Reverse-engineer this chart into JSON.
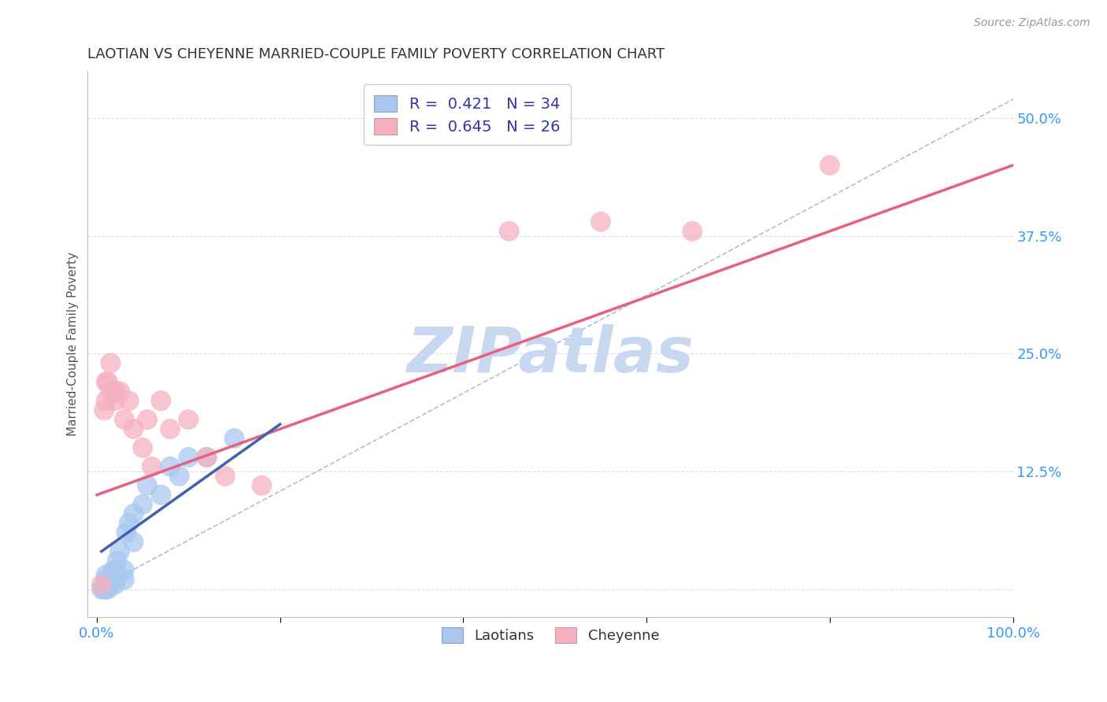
{
  "title": "LAOTIAN VS CHEYENNE MARRIED-COUPLE FAMILY POVERTY CORRELATION CHART",
  "source": "Source: ZipAtlas.com",
  "ylabel": "Married-Couple Family Poverty",
  "xlim": [
    -0.01,
    1.0
  ],
  "ylim": [
    -0.03,
    0.55
  ],
  "xticks": [
    0.0,
    0.2,
    0.4,
    0.6,
    0.8,
    1.0
  ],
  "xticklabels_show": [
    "0.0%",
    "",
    "",
    "",
    "",
    "100.0%"
  ],
  "yticks": [
    0.0,
    0.125,
    0.25,
    0.375,
    0.5
  ],
  "yticklabels": [
    "",
    "12.5%",
    "25.0%",
    "37.5%",
    "50.0%"
  ],
  "laotian_R": 0.421,
  "laotian_N": 34,
  "cheyenne_R": 0.645,
  "cheyenne_N": 26,
  "laotian_color": "#A8C8F0",
  "cheyenne_color": "#F5B0C0",
  "laotian_line_color": "#4060B0",
  "cheyenne_line_color": "#E86080",
  "ref_line_color": "#99AADD",
  "grid_color": "#DDDDEE",
  "title_color": "#333333",
  "axis_label_color": "#555555",
  "tick_color": "#3399FF",
  "watermark": "ZIPatlas",
  "watermark_color": "#C8D8F0",
  "laotian_x": [
    0.005,
    0.007,
    0.008,
    0.009,
    0.01,
    0.01,
    0.01,
    0.01,
    0.01,
    0.01,
    0.012,
    0.012,
    0.015,
    0.015,
    0.018,
    0.02,
    0.02,
    0.02,
    0.022,
    0.025,
    0.03,
    0.03,
    0.032,
    0.035,
    0.04,
    0.04,
    0.05,
    0.055,
    0.07,
    0.08,
    0.09,
    0.1,
    0.12,
    0.15
  ],
  "laotian_y": [
    0.0,
    0.002,
    0.0,
    0.0,
    0.0,
    0.002,
    0.005,
    0.008,
    0.01,
    0.015,
    0.0,
    0.005,
    0.005,
    0.01,
    0.02,
    0.005,
    0.01,
    0.02,
    0.03,
    0.04,
    0.01,
    0.02,
    0.06,
    0.07,
    0.05,
    0.08,
    0.09,
    0.11,
    0.1,
    0.13,
    0.12,
    0.14,
    0.14,
    0.16
  ],
  "cheyenne_x": [
    0.005,
    0.008,
    0.01,
    0.01,
    0.012,
    0.015,
    0.015,
    0.02,
    0.02,
    0.025,
    0.03,
    0.035,
    0.04,
    0.05,
    0.055,
    0.06,
    0.07,
    0.08,
    0.1,
    0.12,
    0.14,
    0.18,
    0.45,
    0.55,
    0.65,
    0.8
  ],
  "cheyenne_y": [
    0.005,
    0.19,
    0.2,
    0.22,
    0.22,
    0.21,
    0.24,
    0.2,
    0.21,
    0.21,
    0.18,
    0.2,
    0.17,
    0.15,
    0.18,
    0.13,
    0.2,
    0.17,
    0.18,
    0.14,
    0.12,
    0.11,
    0.38,
    0.39,
    0.38,
    0.45
  ],
  "cheyenne_line_x": [
    0.0,
    1.0
  ],
  "cheyenne_line_y": [
    0.1,
    0.45
  ],
  "laotian_line_x": [
    0.005,
    0.2
  ],
  "laotian_line_y": [
    0.04,
    0.175
  ],
  "ref_line_x": [
    0.0,
    1.0
  ],
  "ref_line_y": [
    0.0,
    0.52
  ],
  "background_color": "#FFFFFF"
}
